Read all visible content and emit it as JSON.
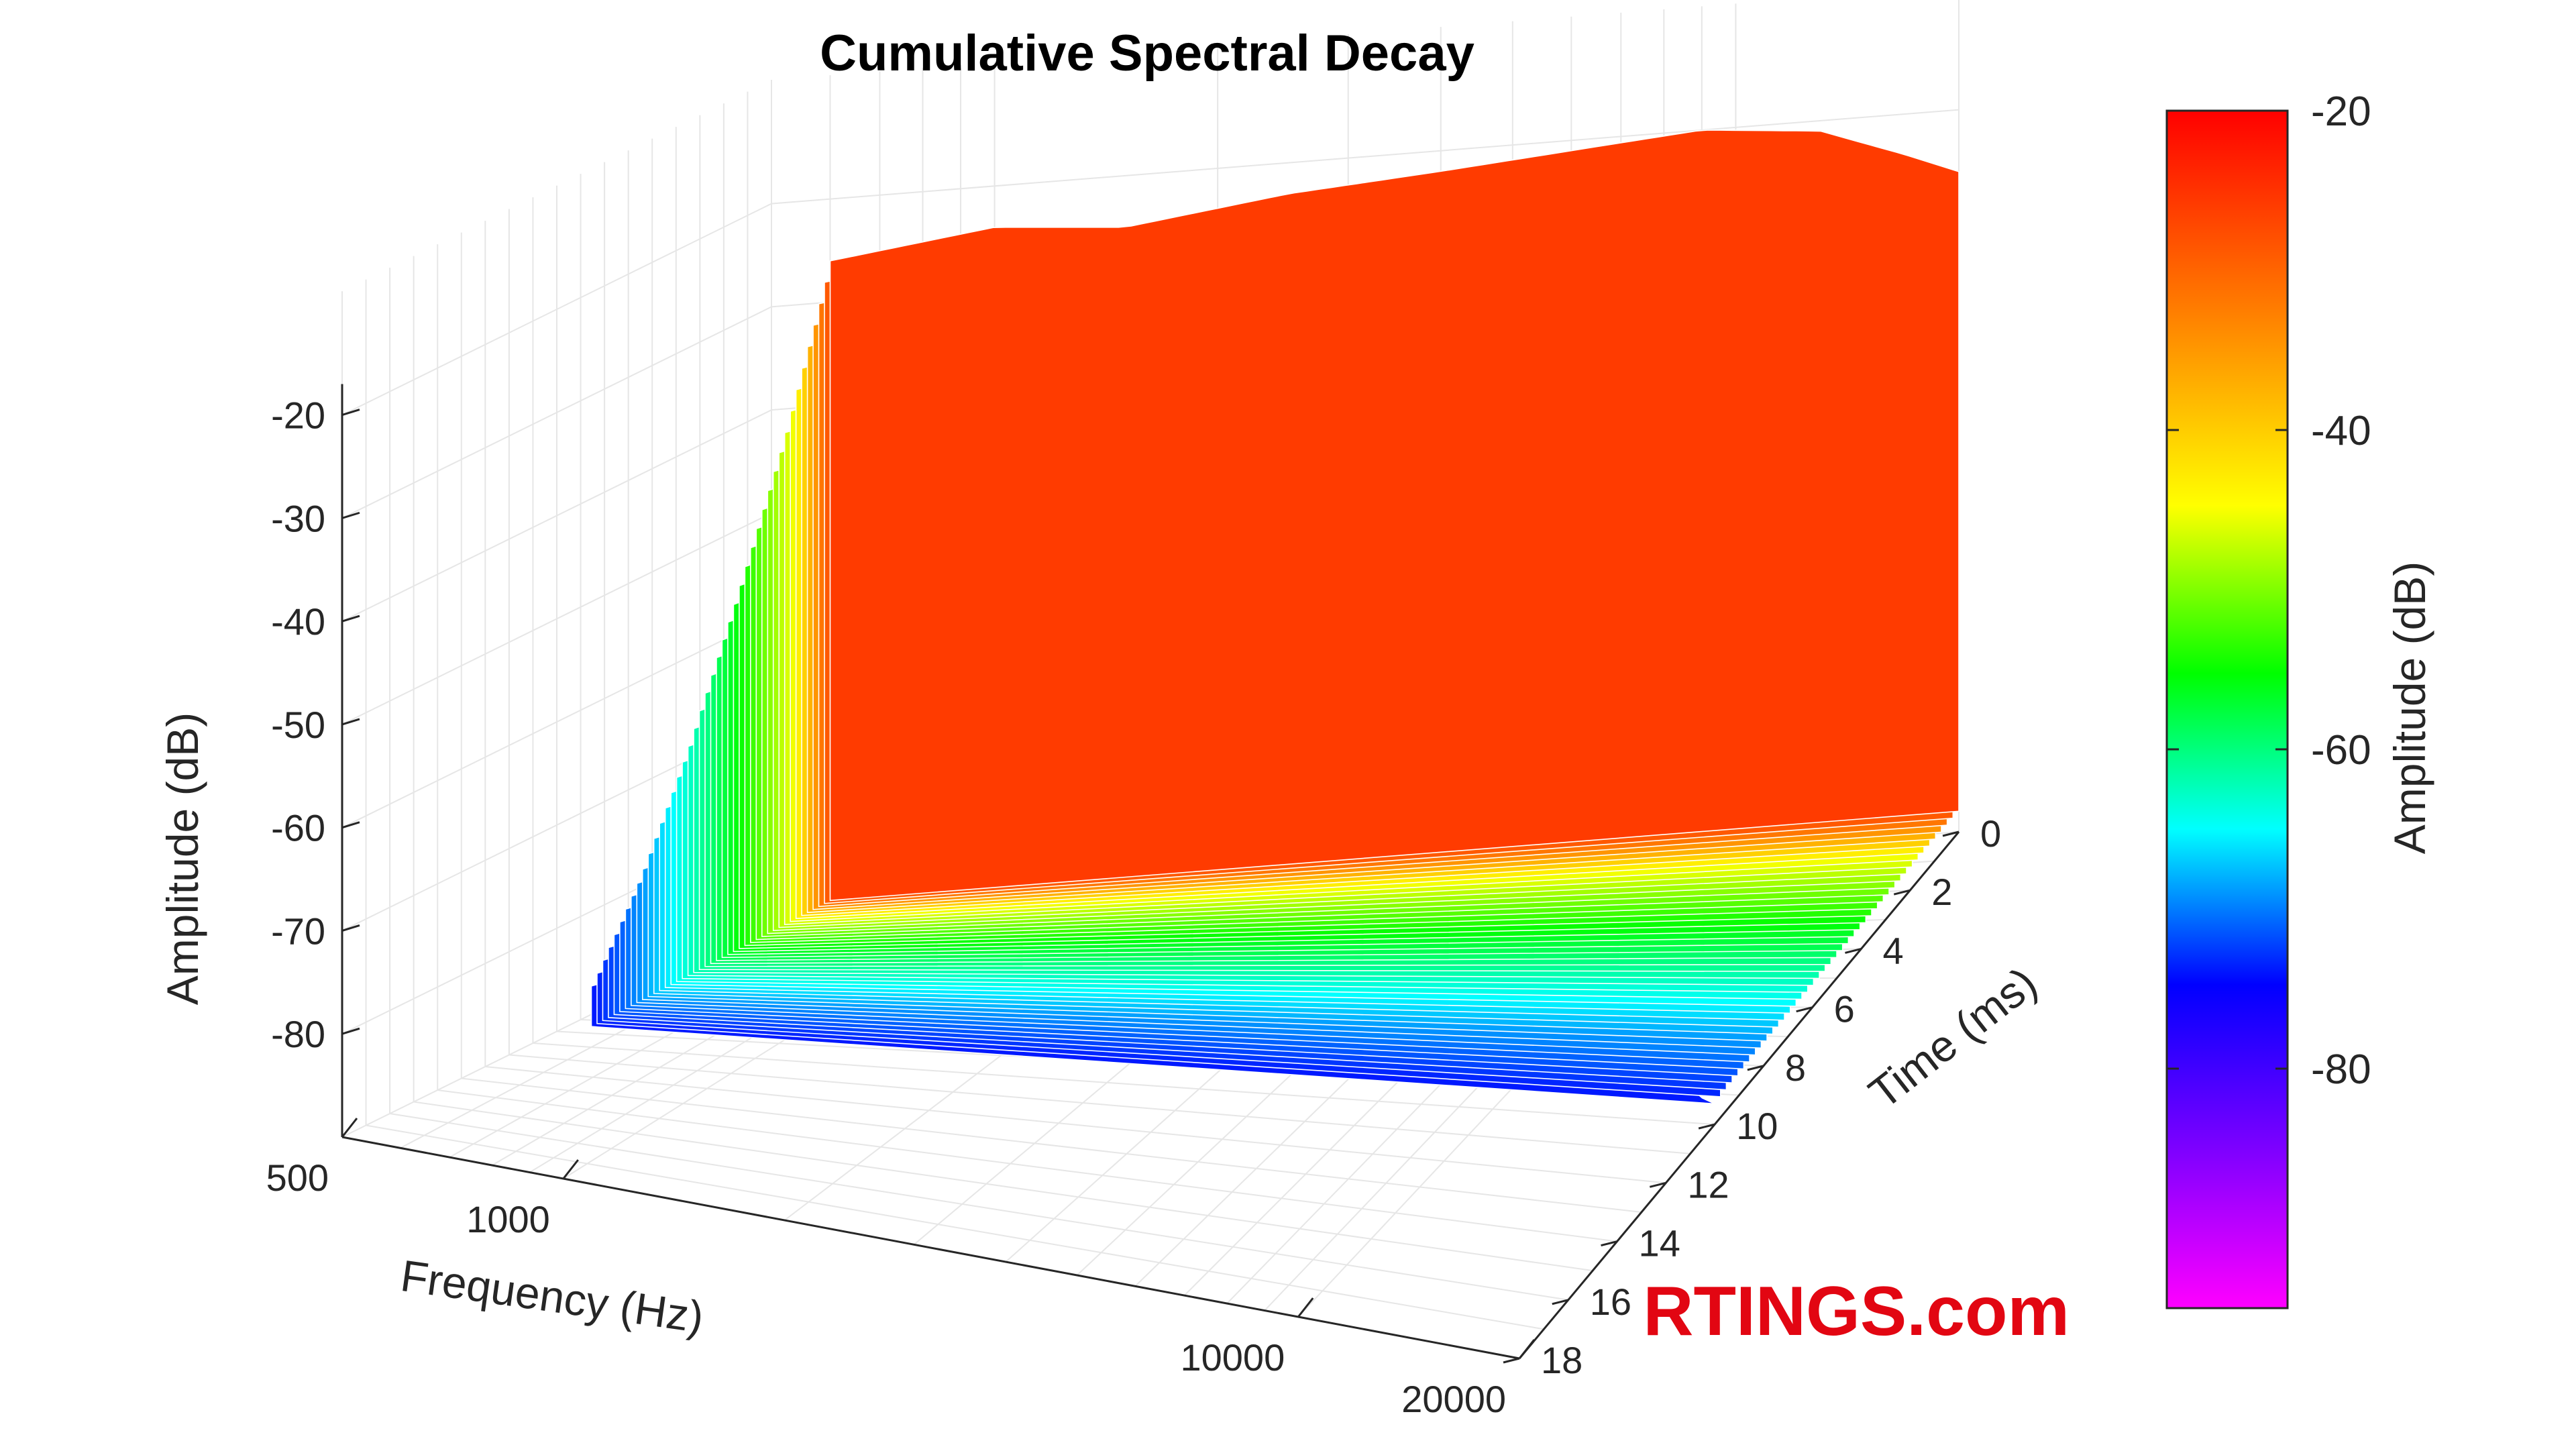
{
  "chart_data": {
    "type": "waterfall-3d",
    "title": "Cumulative Spectral Decay",
    "axes": {
      "x": {
        "label": "Frequency (Hz)",
        "scale": "log",
        "range": [
          500,
          20000
        ],
        "ticks": [
          500,
          1000,
          10000,
          20000
        ],
        "tick_labels": [
          "500",
          "1000",
          "10000",
          "20000"
        ]
      },
      "y": {
        "label": "Time (ms)",
        "range": [
          0,
          18
        ],
        "ticks": [
          0,
          2,
          4,
          6,
          8,
          10,
          12,
          14,
          16,
          18
        ],
        "tick_labels": [
          "0",
          "2",
          "4",
          "6",
          "8",
          "10",
          "12",
          "14",
          "16",
          "18"
        ]
      },
      "z": {
        "label": "Amplitude (dB)",
        "range": [
          -90,
          -20
        ],
        "ticks": [
          -80,
          -70,
          -60,
          -50,
          -40,
          -30,
          -20
        ],
        "tick_labels": [
          "-80",
          "-70",
          "-60",
          "-50",
          "-40",
          "-30",
          "-20"
        ]
      }
    },
    "colorbar": {
      "label": "Amplitude (dB)",
      "range": [
        -95,
        -20
      ],
      "ticks": [
        -80,
        -60,
        -40,
        -20
      ],
      "tick_labels": [
        "-80",
        "-60",
        "-40",
        "-20"
      ],
      "colormap": [
        "#ff00ff",
        "#8000ff",
        "#0000ff",
        "#00ffff",
        "#00ff00",
        "#ffff00",
        "#ff8000",
        "#ff0000"
      ]
    },
    "decay_profile": {
      "time_ms": [
        0,
        2,
        4,
        6,
        8,
        10
      ],
      "amplitude_db": [
        -22,
        -38,
        -52,
        -64,
        -74,
        -82
      ]
    },
    "initial_response": {
      "frequency_hz": [
        600,
        1000,
        1500,
        2500,
        4000,
        6000,
        9000,
        13000,
        17000,
        20000
      ],
      "amplitude_db": [
        -26,
        -24,
        -25,
        -23,
        -22,
        -21,
        -20,
        -21,
        -24,
        -26
      ]
    },
    "grid": true
  },
  "branding": {
    "watermark": "RTINGS.com"
  }
}
